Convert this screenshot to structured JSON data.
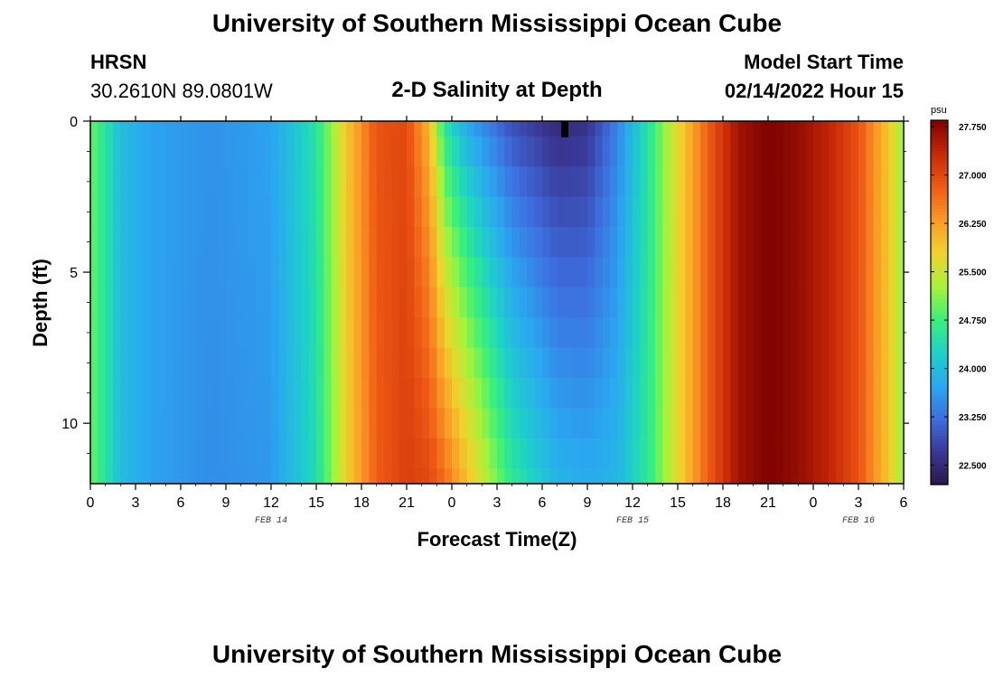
{
  "header": {
    "title": "University of Southern Mississippi Ocean Cube",
    "station": "HRSN",
    "coords": "30.2610N  89.0801W",
    "subtitle": "2-D Salinity at Depth",
    "model_label": "Model Start Time",
    "model_time": "02/14/2022 Hour 15"
  },
  "footer": {
    "title": "University of Southern Mississippi Ocean Cube"
  },
  "chart_data": {
    "type": "heatmap",
    "title": "2-D Salinity at Depth",
    "xlabel": "Forecast Time(Z)",
    "ylabel": "Depth (ft)",
    "x_tick_labels": [
      "0",
      "3",
      "6",
      "9",
      "12",
      "15",
      "18",
      "21",
      "0",
      "3",
      "6",
      "9",
      "12",
      "15",
      "18",
      "21",
      "0",
      "3",
      "6"
    ],
    "x_ticks_hours": [
      0,
      3,
      6,
      9,
      12,
      15,
      18,
      21,
      24,
      27,
      30,
      33,
      36,
      39,
      42,
      45,
      48,
      51,
      54
    ],
    "date_labels": [
      {
        "text": "FEB 14",
        "hour": 12
      },
      {
        "text": "FEB 15",
        "hour": 36
      },
      {
        "text": "FEB 16",
        "hour": 51
      }
    ],
    "y_tick_labels": [
      "0",
      "5",
      "10"
    ],
    "y_ticks": [
      0,
      5,
      10
    ],
    "xlim_hours": [
      0,
      54
    ],
    "ylim_ft": [
      0,
      12
    ],
    "colorbar": {
      "unit": "psu",
      "range": [
        22.2,
        27.85
      ],
      "tick_labels": [
        "27.750",
        "27.000",
        "26.250",
        "25.500",
        "24.750",
        "24.000",
        "23.250",
        "22.500"
      ],
      "tick_values": [
        27.75,
        27.0,
        26.25,
        25.5,
        24.75,
        24.0,
        23.25,
        22.5
      ],
      "colors": [
        "#2a1745",
        "#3a3896",
        "#3d6fe0",
        "#2aa8f0",
        "#1ed1c8",
        "#3af07a",
        "#a8f23a",
        "#f0d32c",
        "#fb9a26",
        "#ee5a15",
        "#c82807",
        "#7e0202"
      ]
    },
    "time_profile": {
      "hours": [
        0,
        1,
        2,
        4,
        8,
        12,
        15,
        17,
        19,
        21,
        22.5,
        23.5,
        25,
        28,
        31,
        33,
        35,
        37,
        39,
        41,
        43,
        45,
        47,
        49,
        51,
        53,
        54
      ],
      "surface_psu": [
        25.0,
        24.5,
        24.0,
        23.7,
        23.55,
        23.7,
        24.5,
        25.9,
        26.9,
        27.0,
        26.0,
        24.5,
        23.7,
        22.9,
        22.5,
        22.6,
        23.4,
        24.5,
        25.7,
        26.8,
        27.6,
        27.85,
        27.7,
        27.4,
        26.9,
        25.9,
        25.2
      ],
      "bottom_psu": [
        25.0,
        24.5,
        24.0,
        23.7,
        23.5,
        23.6,
        24.4,
        25.8,
        26.8,
        27.1,
        27.0,
        26.7,
        26.0,
        24.6,
        23.9,
        23.8,
        23.9,
        24.6,
        25.7,
        26.8,
        27.6,
        27.85,
        27.7,
        27.4,
        26.9,
        25.9,
        25.2
      ]
    },
    "depth_levels_ft": [
      0,
      0.5,
      1.5,
      2.5,
      3.5,
      4.5,
      5.5,
      6.5,
      7.5,
      8.5,
      9.5,
      10.5,
      11.5,
      12
    ]
  }
}
